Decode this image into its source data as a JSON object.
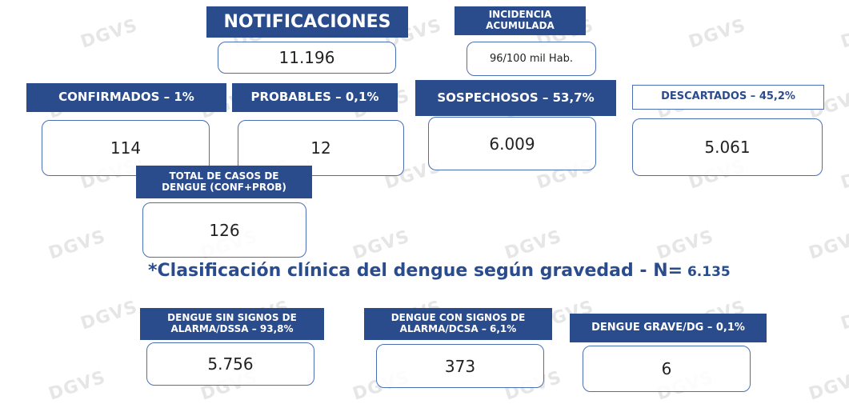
{
  "watermark": "DGVS",
  "title": "*Clasificación clínica del dengue según gravedad - N=",
  "n": " 6.135",
  "cards": [
    {
      "header": [
        "NOTIFICACIONES"
      ],
      "value": "11.196"
    },
    {
      "header": [
        "INCIDENCIA",
        "ACUMULADA"
      ],
      "value": "96/100 mil Hab."
    },
    {
      "header": [
        "CONFIRMADOS – 1%"
      ],
      "value": "114"
    },
    {
      "header": [
        "PROBABLES – 0,1%"
      ],
      "value": "12"
    },
    {
      "header": [
        "SOSPECHOSOS – 53,7%"
      ],
      "value": "6.009"
    },
    {
      "header": [
        "DESCARTADOS – 45,2%"
      ],
      "value": "5.061"
    },
    {
      "header": [
        "TOTAL DE CASOS DE",
        "DENGUE (CONF+PROB)"
      ],
      "value": "126"
    },
    {
      "header": [
        "DENGUE SIN SIGNOS DE",
        "ALARMA/DSSA – 93,8%"
      ],
      "value": "5.756"
    },
    {
      "header": [
        "DENGUE CON SIGNOS DE",
        "ALARMA/DCSA – 6,1%"
      ],
      "value": "373"
    },
    {
      "header": [
        "DENGUE GRAVE/DG – 0,1%"
      ],
      "value": "6"
    }
  ]
}
